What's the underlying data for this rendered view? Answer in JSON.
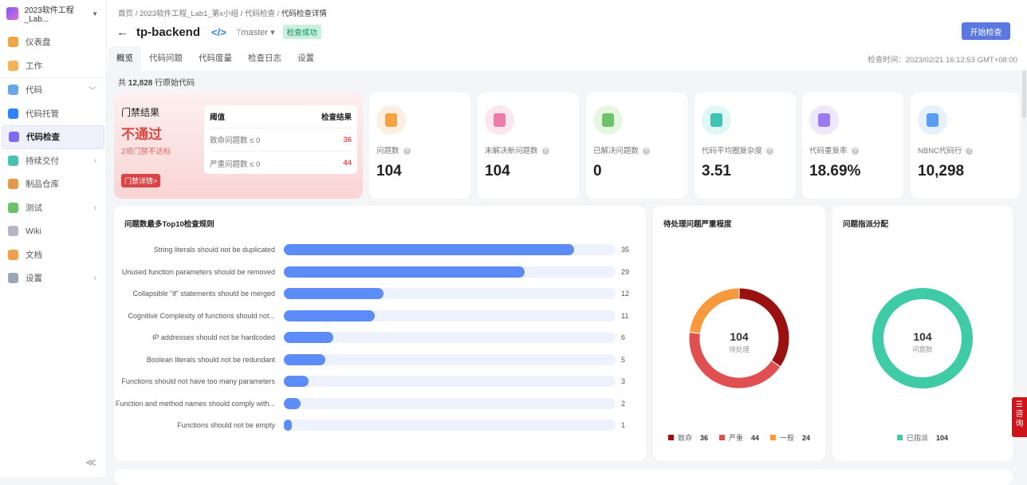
{
  "sidebar": {
    "project": "2023软件工程_Lab...",
    "items": [
      {
        "label": "仪表盘",
        "color": "#f0a54a"
      },
      {
        "label": "工作",
        "color": "#f3b35b"
      },
      {
        "label": "代码",
        "color": "#6aa6e8",
        "chev": "﹀"
      },
      {
        "label": "代码托管",
        "color": "#2f83f7"
      },
      {
        "label": "代码检查",
        "color": "#7b6cf0",
        "active": true
      },
      {
        "label": "持续交付",
        "color": "#4cc0b0",
        "chev": "›"
      },
      {
        "label": "制品仓库",
        "color": "#e49a4a"
      },
      {
        "label": "测试",
        "color": "#6bc26b",
        "chev": "›"
      },
      {
        "label": "Wiki",
        "color": "#b5b5c5"
      },
      {
        "label": "文档",
        "color": "#f0a04a"
      },
      {
        "label": "设置",
        "color": "#9aa5b5",
        "chev": "›"
      }
    ],
    "collapse": "≪"
  },
  "header": {
    "breadcrumb": [
      "首页",
      "2023软件工程_Lab1_第x小组",
      "代码检查",
      "代码检查详情"
    ],
    "back": "←",
    "title": "tp-backend",
    "repo_icon": "</>",
    "branch": "ᛘmaster ▾",
    "status": "检查成功",
    "start_button": "开始检查",
    "tabs": [
      "概览",
      "代码问题",
      "代码度量",
      "检查日志",
      "设置"
    ],
    "check_time": "检查时间：2023/02/21 16:12:53 GMT+08:00"
  },
  "loc": {
    "prefix": "共",
    "count": "12,828",
    "suffix": "行原始代码"
  },
  "gate": {
    "title": "门禁结果",
    "result": "不通过",
    "sub": "2项门禁不达标",
    "detail": "门禁详情>",
    "table_head": [
      "阈值",
      "检查结果"
    ],
    "rows": [
      {
        "label": "致命问题数 ≤ 0",
        "value": "36"
      },
      {
        "label": "严重问题数 ≤ 0",
        "value": "44"
      }
    ]
  },
  "metrics": [
    {
      "label": "问题数",
      "value": "104",
      "bg": "#fdeee2",
      "fg": "#f5a33a"
    },
    {
      "label": "未解决新问题数",
      "value": "104",
      "bg": "#fde6ef",
      "fg": "#f07aa8"
    },
    {
      "label": "已解决问题数",
      "value": "0",
      "bg": "#e7f6e3",
      "fg": "#6cc46a"
    },
    {
      "label": "代码平均圈复杂度",
      "value": "3.51",
      "bg": "#e0f8f5",
      "fg": "#3cc4b0"
    },
    {
      "label": "代码重复率",
      "value": "18.69%",
      "bg": "#efe8fc",
      "fg": "#9a7cf0"
    },
    {
      "label": "NBNC代码行",
      "value": "10,298",
      "bg": "#e6f1fd",
      "fg": "#5a9cf0"
    }
  ],
  "chart_data": [
    {
      "type": "bar",
      "title": "问题数最多Top10检查规则",
      "categories": [
        "String literals should not be duplicated",
        "Unused function parameters should be removed",
        "Collapsible \"if\" statements should be merged",
        "Cognitive Complexity of functions should not...",
        "IP addresses should not be hardcoded",
        "Boolean literals should not be redundant",
        "Functions should not have too many parameters",
        "Function and method names should comply with...",
        "Functions should not be empty"
      ],
      "values": [
        35,
        29,
        12,
        11,
        6,
        5,
        3,
        2,
        1
      ],
      "xlim": [
        0,
        40
      ]
    },
    {
      "type": "pie",
      "title": "待处理问题严重程度",
      "center_value": "104",
      "center_label": "待处理",
      "labels": [
        "致命",
        "严重",
        "一般"
      ],
      "values": [
        36,
        44,
        24
      ],
      "colors": [
        "#9b1010",
        "#e05050",
        "#f79a3e"
      ]
    },
    {
      "type": "pie",
      "title": "问题指派分配",
      "center_value": "104",
      "center_label": "问题数",
      "labels": [
        "已指派"
      ],
      "values": [
        104
      ],
      "colors": [
        "#3ecba5"
      ]
    }
  ],
  "consult": "咨询"
}
